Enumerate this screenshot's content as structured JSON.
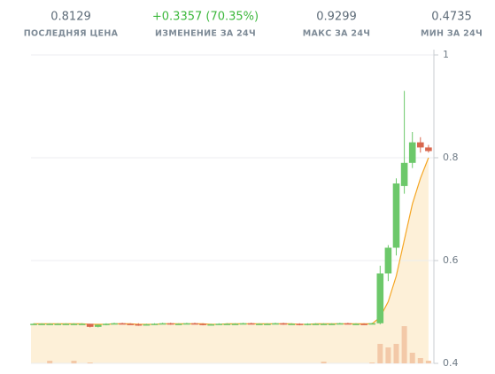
{
  "stats": [
    {
      "value": "0.8129",
      "label": "ПОСЛЕДНЯЯ ЦЕНА"
    },
    {
      "value": "+0.3357 (70.35%)",
      "label": "ИЗМЕНЕНИЕ ЗА 24Ч"
    },
    {
      "value": "0.9299",
      "label": "МАКС ЗА 24Ч"
    },
    {
      "value": "0.4735",
      "label": "МИН ЗА 24Ч"
    }
  ],
  "chart_data": {
    "type": "candlestick",
    "ylim": [
      0.4,
      1
    ],
    "yticks": [
      0.4,
      0.6,
      0.8,
      1
    ],
    "grid": true,
    "up_color": "#6cc86a",
    "down_color": "#d9674e",
    "ma_color": "#f5a623",
    "area_color": "#fdf0d8",
    "volume_color": "#f3c9a8",
    "ohlc": [
      [
        0.477,
        0.478,
        0.476,
        0.477
      ],
      [
        0.477,
        0.478,
        0.476,
        0.477
      ],
      [
        0.477,
        0.478,
        0.476,
        0.477
      ],
      [
        0.477,
        0.478,
        0.476,
        0.477
      ],
      [
        0.477,
        0.478,
        0.476,
        0.477
      ],
      [
        0.477,
        0.478,
        0.476,
        0.477
      ],
      [
        0.477,
        0.478,
        0.476,
        0.477
      ],
      [
        0.477,
        0.477,
        0.47,
        0.471
      ],
      [
        0.471,
        0.476,
        0.47,
        0.475
      ],
      [
        0.475,
        0.478,
        0.474,
        0.477
      ],
      [
        0.477,
        0.479,
        0.476,
        0.478
      ],
      [
        0.478,
        0.479,
        0.476,
        0.477
      ],
      [
        0.477,
        0.478,
        0.475,
        0.476
      ],
      [
        0.476,
        0.478,
        0.473,
        0.475
      ],
      [
        0.475,
        0.477,
        0.474,
        0.476
      ],
      [
        0.476,
        0.478,
        0.475,
        0.477
      ],
      [
        0.477,
        0.479,
        0.476,
        0.478
      ],
      [
        0.478,
        0.479,
        0.475,
        0.476
      ],
      [
        0.476,
        0.478,
        0.475,
        0.477
      ],
      [
        0.477,
        0.479,
        0.476,
        0.478
      ],
      [
        0.478,
        0.479,
        0.476,
        0.477
      ],
      [
        0.477,
        0.478,
        0.474,
        0.475
      ],
      [
        0.475,
        0.477,
        0.474,
        0.476
      ],
      [
        0.476,
        0.478,
        0.475,
        0.477
      ],
      [
        0.477,
        0.478,
        0.476,
        0.477
      ],
      [
        0.477,
        0.478,
        0.476,
        0.477
      ],
      [
        0.477,
        0.479,
        0.476,
        0.478
      ],
      [
        0.478,
        0.479,
        0.476,
        0.477
      ],
      [
        0.477,
        0.478,
        0.476,
        0.477
      ],
      [
        0.477,
        0.478,
        0.476,
        0.477
      ],
      [
        0.477,
        0.479,
        0.476,
        0.478
      ],
      [
        0.478,
        0.479,
        0.475,
        0.476
      ],
      [
        0.476,
        0.478,
        0.475,
        0.477
      ],
      [
        0.477,
        0.478,
        0.474,
        0.475
      ],
      [
        0.475,
        0.478,
        0.474,
        0.477
      ],
      [
        0.477,
        0.478,
        0.476,
        0.477
      ],
      [
        0.477,
        0.478,
        0.476,
        0.477
      ],
      [
        0.477,
        0.478,
        0.476,
        0.477
      ],
      [
        0.477,
        0.479,
        0.476,
        0.478
      ],
      [
        0.478,
        0.479,
        0.476,
        0.477
      ],
      [
        0.477,
        0.478,
        0.476,
        0.477
      ],
      [
        0.477,
        0.478,
        0.475,
        0.476
      ],
      [
        0.476,
        0.479,
        0.476,
        0.478
      ],
      [
        0.478,
        0.59,
        0.476,
        0.575
      ],
      [
        0.575,
        0.63,
        0.56,
        0.625
      ],
      [
        0.625,
        0.76,
        0.61,
        0.75
      ],
      [
        0.745,
        0.93,
        0.73,
        0.79
      ],
      [
        0.79,
        0.85,
        0.78,
        0.83
      ],
      [
        0.83,
        0.84,
        0.81,
        0.82
      ],
      [
        0.82,
        0.825,
        0.81,
        0.813
      ]
    ],
    "ma": [
      0.477,
      0.477,
      0.477,
      0.477,
      0.477,
      0.477,
      0.477,
      0.476,
      0.476,
      0.476,
      0.477,
      0.477,
      0.477,
      0.476,
      0.476,
      0.476,
      0.477,
      0.477,
      0.477,
      0.477,
      0.477,
      0.477,
      0.476,
      0.476,
      0.477,
      0.477,
      0.477,
      0.477,
      0.477,
      0.477,
      0.477,
      0.477,
      0.477,
      0.476,
      0.476,
      0.477,
      0.477,
      0.477,
      0.477,
      0.477,
      0.477,
      0.477,
      0.477,
      0.49,
      0.52,
      0.57,
      0.64,
      0.71,
      0.76,
      0.8
    ],
    "volume": [
      0,
      0,
      3,
      0,
      0,
      3,
      0,
      1,
      0,
      0,
      0,
      0,
      0,
      0,
      0,
      0,
      0,
      0,
      0,
      0,
      0,
      0,
      0,
      0,
      0,
      0,
      0,
      0,
      0,
      0,
      0,
      0,
      0,
      0,
      0,
      0,
      2,
      0,
      0,
      0,
      0,
      0,
      1,
      22,
      18,
      22,
      42,
      12,
      6,
      3
    ]
  }
}
